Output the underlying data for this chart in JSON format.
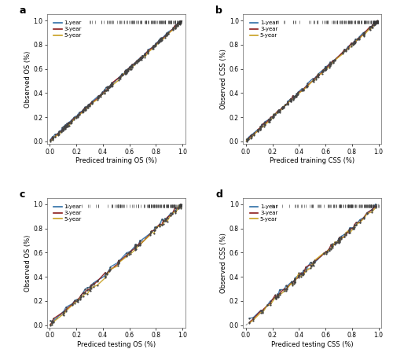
{
  "panels": [
    {
      "label": "a",
      "xlabel": "Prediced training OS (%)",
      "ylabel": "Observed OS (%)"
    },
    {
      "label": "b",
      "xlabel": "Prediced training CSS (%)",
      "ylabel": "Observed CSS (%)"
    },
    {
      "label": "c",
      "xlabel": "Prediced testing OS (%)",
      "ylabel": "Observed OS (%)"
    },
    {
      "label": "d",
      "xlabel": "Prediced testing CSS (%)",
      "ylabel": "Observed CSS (%)"
    }
  ],
  "legend_labels": [
    "1-year",
    "3-year",
    "5-year"
  ],
  "colors": {
    "1year": "#2E6EA6",
    "3year": "#8B1A1A",
    "5year": "#C8A020",
    "dots": "#555555",
    "diagonal": "#888888"
  },
  "figsize": [
    5.0,
    4.58
  ],
  "dpi": 100
}
